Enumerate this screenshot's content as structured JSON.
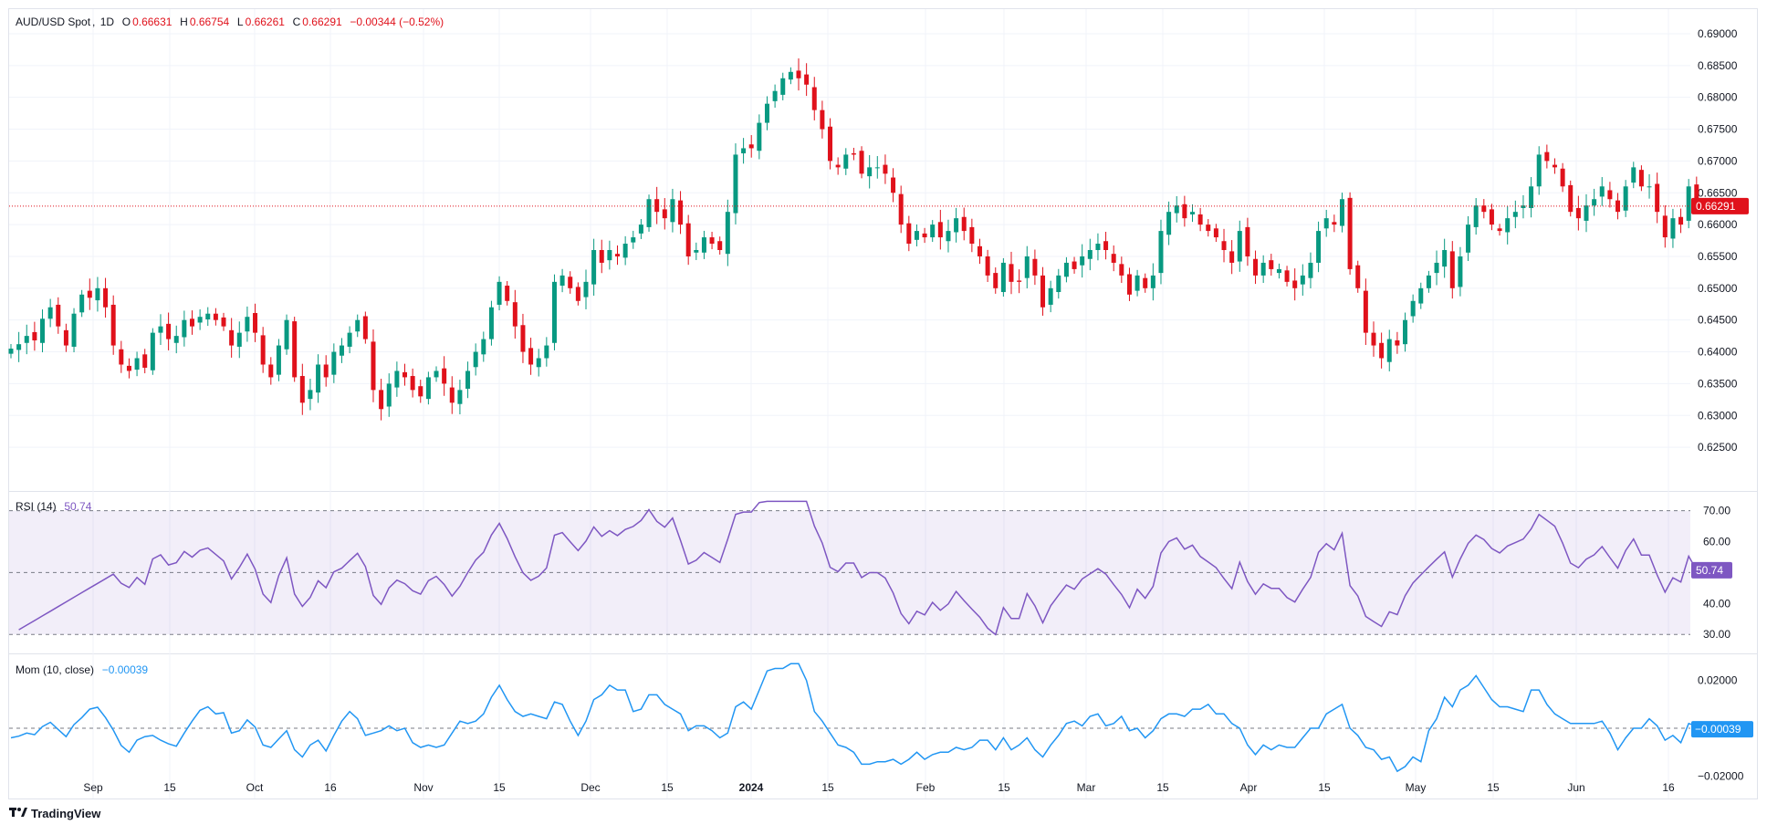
{
  "chart_data": [
    {
      "type": "candlestick",
      "symbol": "AUD/USD Spot",
      "interval": "1D",
      "ohlc_legend": {
        "o_label": "O",
        "open": "0.66631",
        "h_label": "H",
        "high": "0.66754",
        "l_label": "L",
        "low": "0.66261",
        "c_label": "C",
        "close": "0.66291",
        "change": "−0.00344 (−0.52%)"
      },
      "last_price_label": "0.66291",
      "ylim": [
        0.621,
        0.691
      ],
      "y_ticks": [
        "0.62500",
        "0.63000",
        "0.63500",
        "0.64000",
        "0.64500",
        "0.65000",
        "0.65500",
        "0.66000",
        "0.66500",
        "0.67000",
        "0.67500",
        "0.68000",
        "0.68500",
        "0.69000"
      ],
      "x_ticks": [
        "Sep",
        "15",
        "Oct",
        "16",
        "Nov",
        "15",
        "Dec",
        "15",
        "2024",
        "15",
        "Feb",
        "15",
        "Mar",
        "15",
        "Apr",
        "15",
        "May",
        "15",
        "Jun",
        "16"
      ],
      "close_series": [
        0.6405,
        0.6412,
        0.6425,
        0.6418,
        0.6452,
        0.647,
        0.644,
        0.641,
        0.646,
        0.649,
        0.6485,
        0.65,
        0.647,
        0.641,
        0.638,
        0.637,
        0.639,
        0.6375,
        0.643,
        0.644,
        0.642,
        0.6425,
        0.645,
        0.644,
        0.6455,
        0.646,
        0.645,
        0.644,
        0.641,
        0.643,
        0.6455,
        0.643,
        0.638,
        0.636,
        0.641,
        0.645,
        0.636,
        0.632,
        0.634,
        0.638,
        0.636,
        0.64,
        0.641,
        0.643,
        0.645,
        0.642,
        0.634,
        0.631,
        0.635,
        0.637,
        0.636,
        0.634,
        0.633,
        0.636,
        0.637,
        0.635,
        0.632,
        0.634,
        0.637,
        0.64,
        0.642,
        0.647,
        0.651,
        0.648,
        0.644,
        0.64,
        0.638,
        0.639,
        0.641,
        0.651,
        0.652,
        0.65,
        0.648,
        0.651,
        0.656,
        0.654,
        0.656,
        0.655,
        0.657,
        0.658,
        0.66,
        0.664,
        0.662,
        0.661,
        0.664,
        0.66,
        0.655,
        0.656,
        0.658,
        0.657,
        0.656,
        0.662,
        0.671,
        0.672,
        0.672,
        0.676,
        0.679,
        0.681,
        0.683,
        0.684,
        0.683,
        0.682,
        0.678,
        0.675,
        0.67,
        0.669,
        0.671,
        0.671,
        0.668,
        0.669,
        0.669,
        0.668,
        0.665,
        0.66,
        0.657,
        0.659,
        0.658,
        0.66,
        0.658,
        0.659,
        0.661,
        0.659,
        0.657,
        0.655,
        0.652,
        0.65,
        0.654,
        0.651,
        0.651,
        0.655,
        0.652,
        0.647,
        0.65,
        0.652,
        0.654,
        0.653,
        0.655,
        0.656,
        0.657,
        0.656,
        0.654,
        0.652,
        0.649,
        0.652,
        0.65,
        0.652,
        0.659,
        0.662,
        0.663,
        0.661,
        0.662,
        0.66,
        0.659,
        0.658,
        0.656,
        0.654,
        0.659,
        0.655,
        0.652,
        0.654,
        0.653,
        0.653,
        0.651,
        0.65,
        0.652,
        0.654,
        0.659,
        0.661,
        0.66,
        0.664,
        0.653,
        0.65,
        0.643,
        0.641,
        0.639,
        0.642,
        0.641,
        0.645,
        0.648,
        0.65,
        0.652,
        0.654,
        0.656,
        0.65,
        0.655,
        0.66,
        0.663,
        0.662,
        0.66,
        0.659,
        0.661,
        0.662,
        0.663,
        0.666,
        0.671,
        0.67,
        0.669,
        0.666,
        0.662,
        0.661,
        0.663,
        0.664,
        0.666,
        0.664,
        0.662,
        0.666,
        0.669,
        0.666,
        0.666,
        0.662,
        0.658,
        0.661,
        0.66,
        0.666,
        0.6629
      ],
      "last_candle": {
        "open": 0.66631,
        "high": 0.66754,
        "low": 0.66261,
        "close": 0.66291
      }
    },
    {
      "type": "line",
      "name": "RSI (14)",
      "value_label": "50.74",
      "ylim": [
        28,
        74
      ],
      "y_ticks": [
        "70.00",
        "60.00",
        "40.00",
        "30.00"
      ],
      "band": [
        30,
        70
      ],
      "midline": 50,
      "color": "#7e57c2"
    },
    {
      "type": "line",
      "name": "Mom (10, close)",
      "value_label": "−0.00039",
      "ylim": [
        -0.0225,
        0.0275
      ],
      "y_ticks": [
        "0.02000",
        "−0.02000"
      ],
      "zero_line": 0,
      "color": "#2196f3"
    }
  ],
  "footer": {
    "brand": "TradingView"
  },
  "colors": {
    "up": "#089981",
    "down": "#f23645",
    "down_fill": "#e0111b",
    "rsi": "#7e57c2",
    "mom": "#2196f3",
    "grid": "#f0f3fa",
    "text": "#131722"
  }
}
